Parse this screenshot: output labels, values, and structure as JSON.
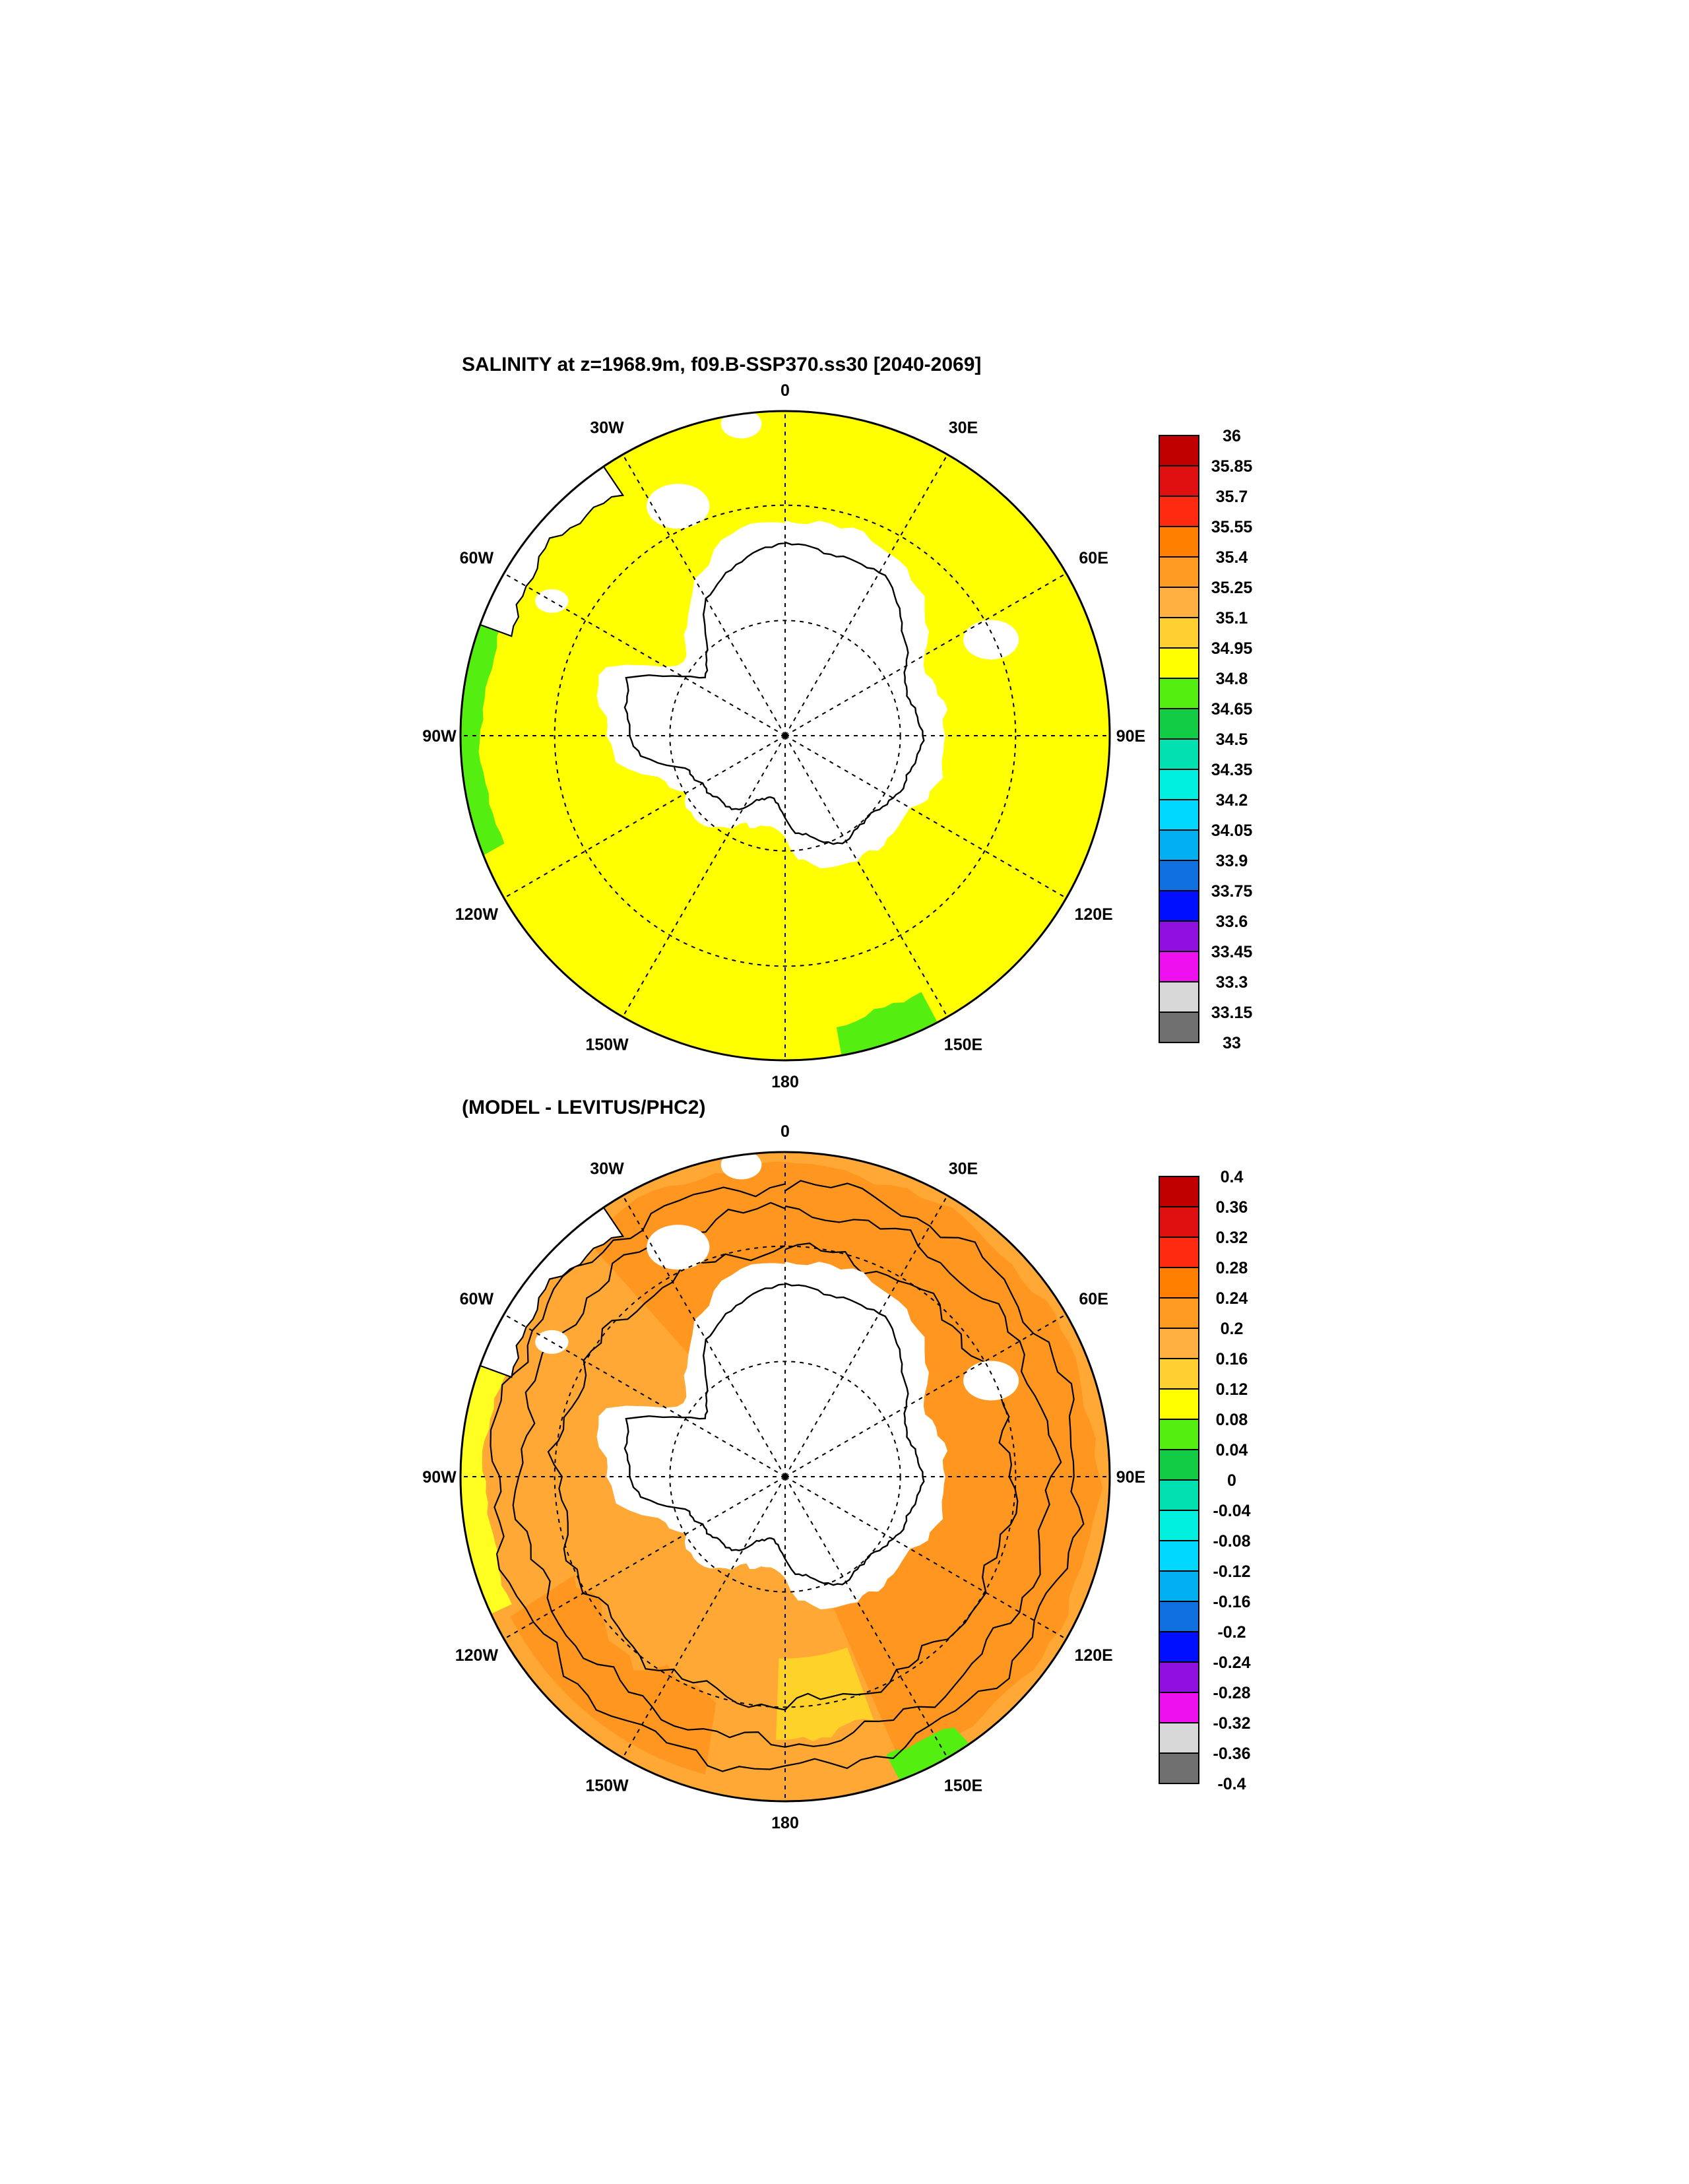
{
  "panels": [
    {
      "id": "top",
      "title": "SALINITY at z=1968.9m, f09.B-SSP370.ss30 [2040-2069]",
      "base_fill": "#ffff00",
      "regions": [
        {
          "name": "green-band-atlantic-west",
          "color": "#55ee11"
        },
        {
          "name": "green-band-pacific-southeast",
          "color": "#55ee11"
        }
      ],
      "colorbar": {
        "labels": [
          "36",
          "35.85",
          "35.7",
          "35.55",
          "35.4",
          "35.25",
          "35.1",
          "34.95",
          "34.8",
          "34.65",
          "34.5",
          "34.35",
          "34.2",
          "34.05",
          "33.9",
          "33.75",
          "33.6",
          "33.45",
          "33.3",
          "33.15",
          "33"
        ],
        "colors": [
          "#c00000",
          "#e01010",
          "#ff2a10",
          "#ff7f00",
          "#ff9a20",
          "#ffb040",
          "#ffd030",
          "#ffff00",
          "#55ee11",
          "#11cc44",
          "#00e0b0",
          "#00f0e0",
          "#00d8ff",
          "#00b0f0",
          "#1070e0",
          "#0010ff",
          "#9010e0",
          "#ee10ee",
          "#d8d8d8",
          "#707070"
        ]
      }
    },
    {
      "id": "bottom",
      "title": "(MODEL - LEVITUS/PHC2)",
      "base_fill": "#ffa835",
      "regions": [
        {
          "name": "orange-zone-ring",
          "color": "#ff961f"
        },
        {
          "name": "orange-zone-south-pacific",
          "color": "#ff961f"
        },
        {
          "name": "yellow-band-atlantic-west",
          "color": "#ffff22"
        },
        {
          "name": "yellow-band-pacific-east",
          "color": "#ffd22a"
        },
        {
          "name": "green-band-pacific-southeast",
          "color": "#55ee11"
        }
      ],
      "colorbar": {
        "labels": [
          "0.4",
          "0.36",
          "0.32",
          "0.28",
          "0.24",
          "0.2",
          "0.16",
          "0.12",
          "0.08",
          "0.04",
          "0",
          "-0.04",
          "-0.08",
          "-0.12",
          "-0.16",
          "-0.2",
          "-0.24",
          "-0.28",
          "-0.32",
          "-0.36",
          "-0.4"
        ],
        "colors": [
          "#c00000",
          "#e01010",
          "#ff2a10",
          "#ff7f00",
          "#ff9a20",
          "#ffb040",
          "#ffd030",
          "#ffff00",
          "#55ee11",
          "#11cc44",
          "#00e0b0",
          "#00f0e0",
          "#00d8ff",
          "#00b0f0",
          "#1070e0",
          "#0010ff",
          "#9010e0",
          "#ee10ee",
          "#d8d8d8",
          "#707070"
        ]
      }
    }
  ],
  "longitude_labels": [
    "0",
    "30E",
    "60E",
    "90E",
    "120E",
    "150E",
    "180",
    "150W",
    "120W",
    "90W",
    "60W",
    "30W"
  ]
}
